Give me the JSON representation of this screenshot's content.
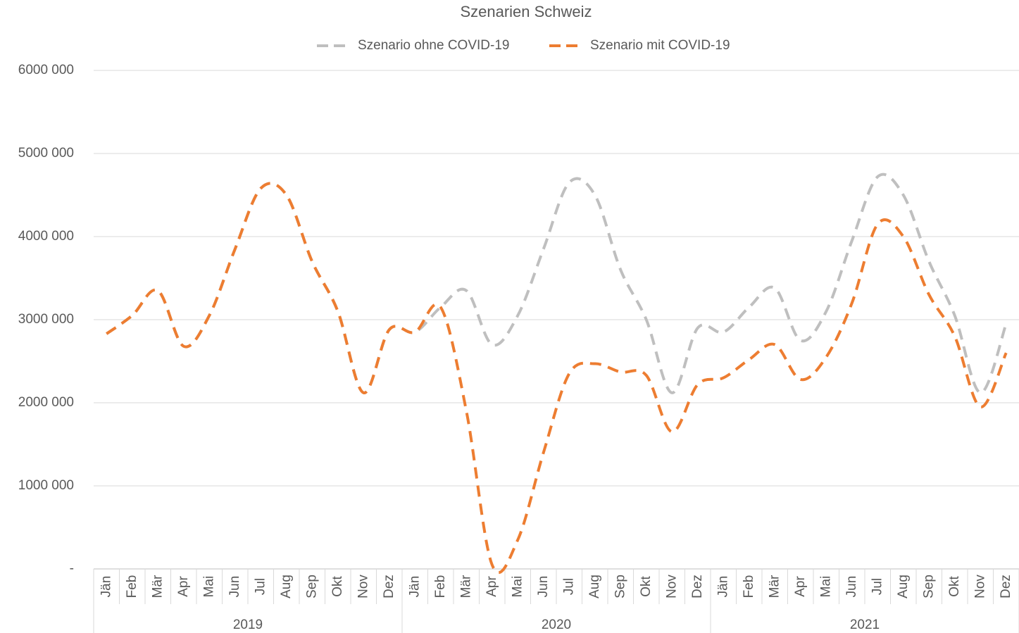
{
  "chart_data": {
    "type": "line",
    "title": "Szenarien Schweiz",
    "categories": [
      "Jän",
      "Feb",
      "Mär",
      "Apr",
      "Mai",
      "Jun",
      "Jul",
      "Aug",
      "Sep",
      "Okt",
      "Nov",
      "Dez",
      "Jän",
      "Feb",
      "Mär",
      "Apr",
      "Mai",
      "Jun",
      "Jul",
      "Aug",
      "Sep",
      "Okt",
      "Nov",
      "Dez",
      "Jän",
      "Feb",
      "Mär",
      "Apr",
      "Mai",
      "Jun",
      "Jul",
      "Aug",
      "Sep",
      "Okt",
      "Nov",
      "Dez"
    ],
    "years": [
      "2019",
      "2020",
      "2021"
    ],
    "series": [
      {
        "name": "Szenario ohne COVID-19",
        "color": "#bfbfbf",
        "values": [
          2830000,
          3050000,
          3350000,
          2680000,
          3050000,
          3850000,
          4580000,
          4500000,
          3700000,
          3100000,
          2120000,
          2880000,
          2850000,
          3150000,
          3350000,
          2700000,
          3050000,
          3850000,
          4650000,
          4500000,
          3600000,
          3000000,
          2120000,
          2900000,
          2850000,
          3150000,
          3380000,
          2750000,
          3100000,
          3950000,
          4720000,
          4500000,
          3700000,
          3050000,
          2120000,
          2950000
        ]
      },
      {
        "name": "Szenario mit COVID-19",
        "color": "#ed7d31",
        "values": [
          2830000,
          3050000,
          3350000,
          2680000,
          3050000,
          3850000,
          4580000,
          4500000,
          3700000,
          3100000,
          2120000,
          2880000,
          2850000,
          3150000,
          1900000,
          50000,
          350000,
          1400000,
          2350000,
          2470000,
          2370000,
          2330000,
          1650000,
          2220000,
          2300000,
          2520000,
          2700000,
          2280000,
          2550000,
          3200000,
          4150000,
          4000000,
          3300000,
          2800000,
          1950000,
          2600000
        ]
      }
    ],
    "ylim": [
      0,
      6000000
    ],
    "yticks": [
      {
        "value": 0,
        "label": "-"
      },
      {
        "value": 1000000,
        "label": "1000 000"
      },
      {
        "value": 2000000,
        "label": "2000 000"
      },
      {
        "value": 3000000,
        "label": "3000 000"
      },
      {
        "value": 4000000,
        "label": "4000 000"
      },
      {
        "value": 5000000,
        "label": "5000 000"
      },
      {
        "value": 6000000,
        "label": "6000 000"
      }
    ],
    "grid": true,
    "legend": "top"
  }
}
